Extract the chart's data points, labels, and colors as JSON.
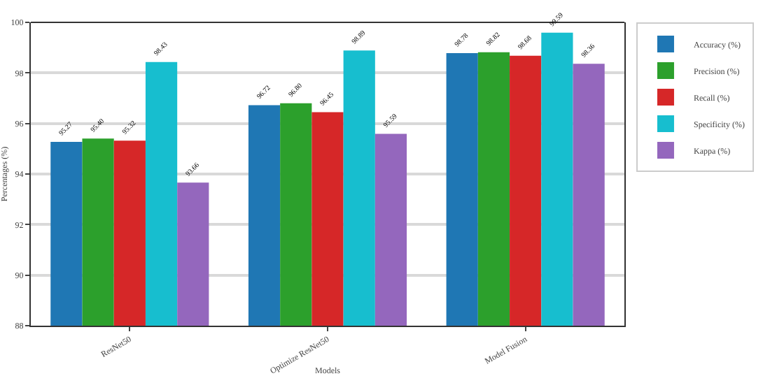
{
  "chart_data": {
    "type": "bar",
    "xlabel": "Models",
    "ylabel": "Percentages (%)",
    "categories": [
      "ResNet50",
      "Optimize ResNet50",
      "Model Fusion"
    ],
    "series": [
      {
        "name": "Accuracy (%)",
        "color": "#1f77b4",
        "values": [
          95.27,
          96.72,
          98.78
        ],
        "value_labels": [
          "95.27",
          "96.72",
          "98.78"
        ]
      },
      {
        "name": "Precision (%)",
        "color": "#2ca02c",
        "values": [
          95.4,
          96.8,
          98.82
        ],
        "value_labels": [
          "95.40",
          "96.80",
          "98.82"
        ]
      },
      {
        "name": "Recall (%)",
        "color": "#d62728",
        "values": [
          95.32,
          96.45,
          98.68
        ],
        "value_labels": [
          "95.32",
          "96.45",
          "98.68"
        ]
      },
      {
        "name": "Specificity (%)",
        "color": "#17becf",
        "values": [
          98.43,
          98.89,
          99.59
        ],
        "value_labels": [
          "98.43",
          "98.89",
          "99.59"
        ]
      },
      {
        "name": "Kappa (%)",
        "color": "#9467bd",
        "values": [
          93.66,
          95.59,
          98.36
        ],
        "value_labels": [
          "93.66",
          "95.59",
          "98.36"
        ]
      }
    ],
    "ylim": [
      88,
      100
    ],
    "yticks": [
      88,
      90,
      92,
      94,
      96,
      98,
      100
    ],
    "grid": "y",
    "legend": "top right"
  }
}
